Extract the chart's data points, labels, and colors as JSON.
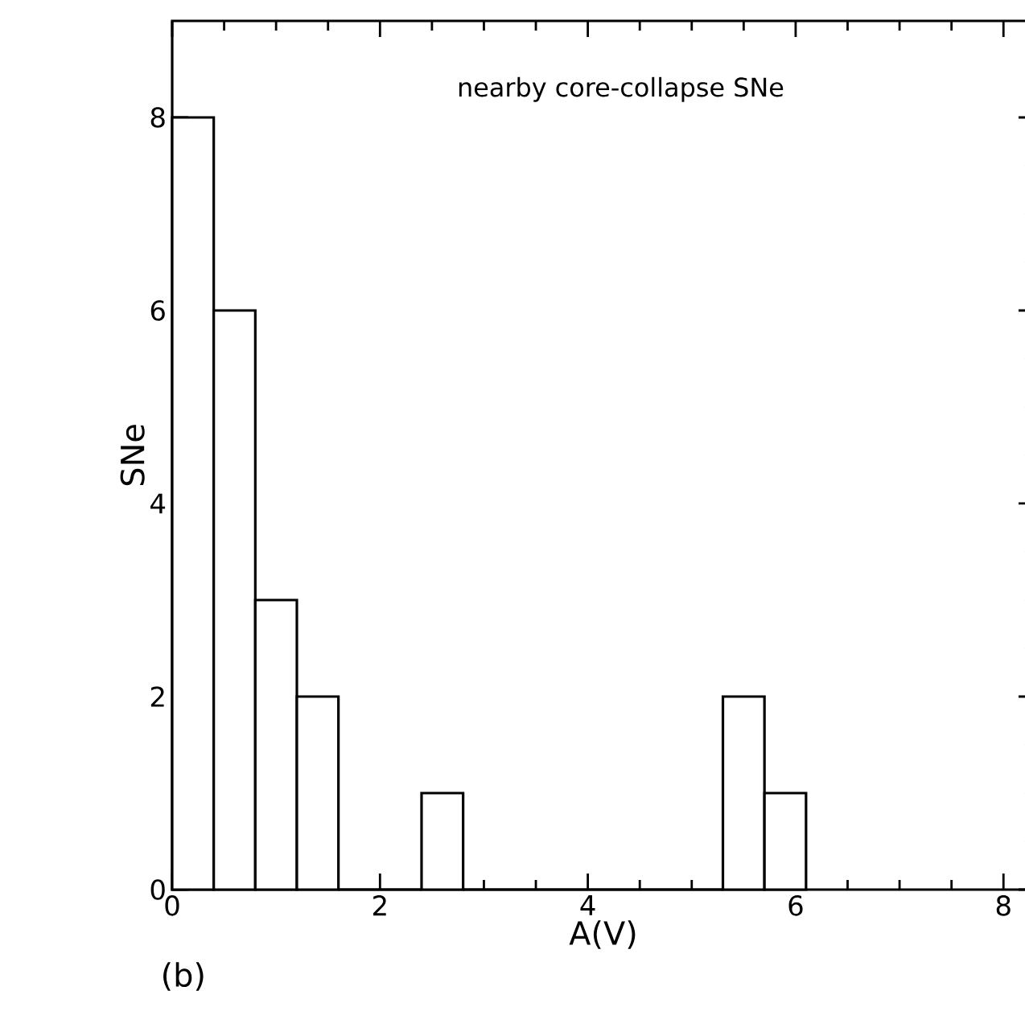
{
  "chart_data": {
    "type": "histogram",
    "title": "nearby core-collapse SNe",
    "xlabel": "A(V)",
    "ylabel": "SNe",
    "annotations": [
      "(b)"
    ],
    "bins": [
      0,
      0.4,
      0.8,
      1.2,
      1.6,
      2.4,
      2.8,
      5.3,
      5.7,
      6.1
    ],
    "values": [
      8,
      6,
      3,
      2,
      0,
      1,
      0,
      2,
      1
    ],
    "color": "#000000",
    "xlim": [
      0,
      8.3
    ],
    "ylim": [
      0,
      9
    ],
    "xticks": [
      0,
      2,
      4,
      6,
      8
    ],
    "yticks": [
      0,
      2,
      4,
      6,
      8
    ],
    "grid": false
  }
}
